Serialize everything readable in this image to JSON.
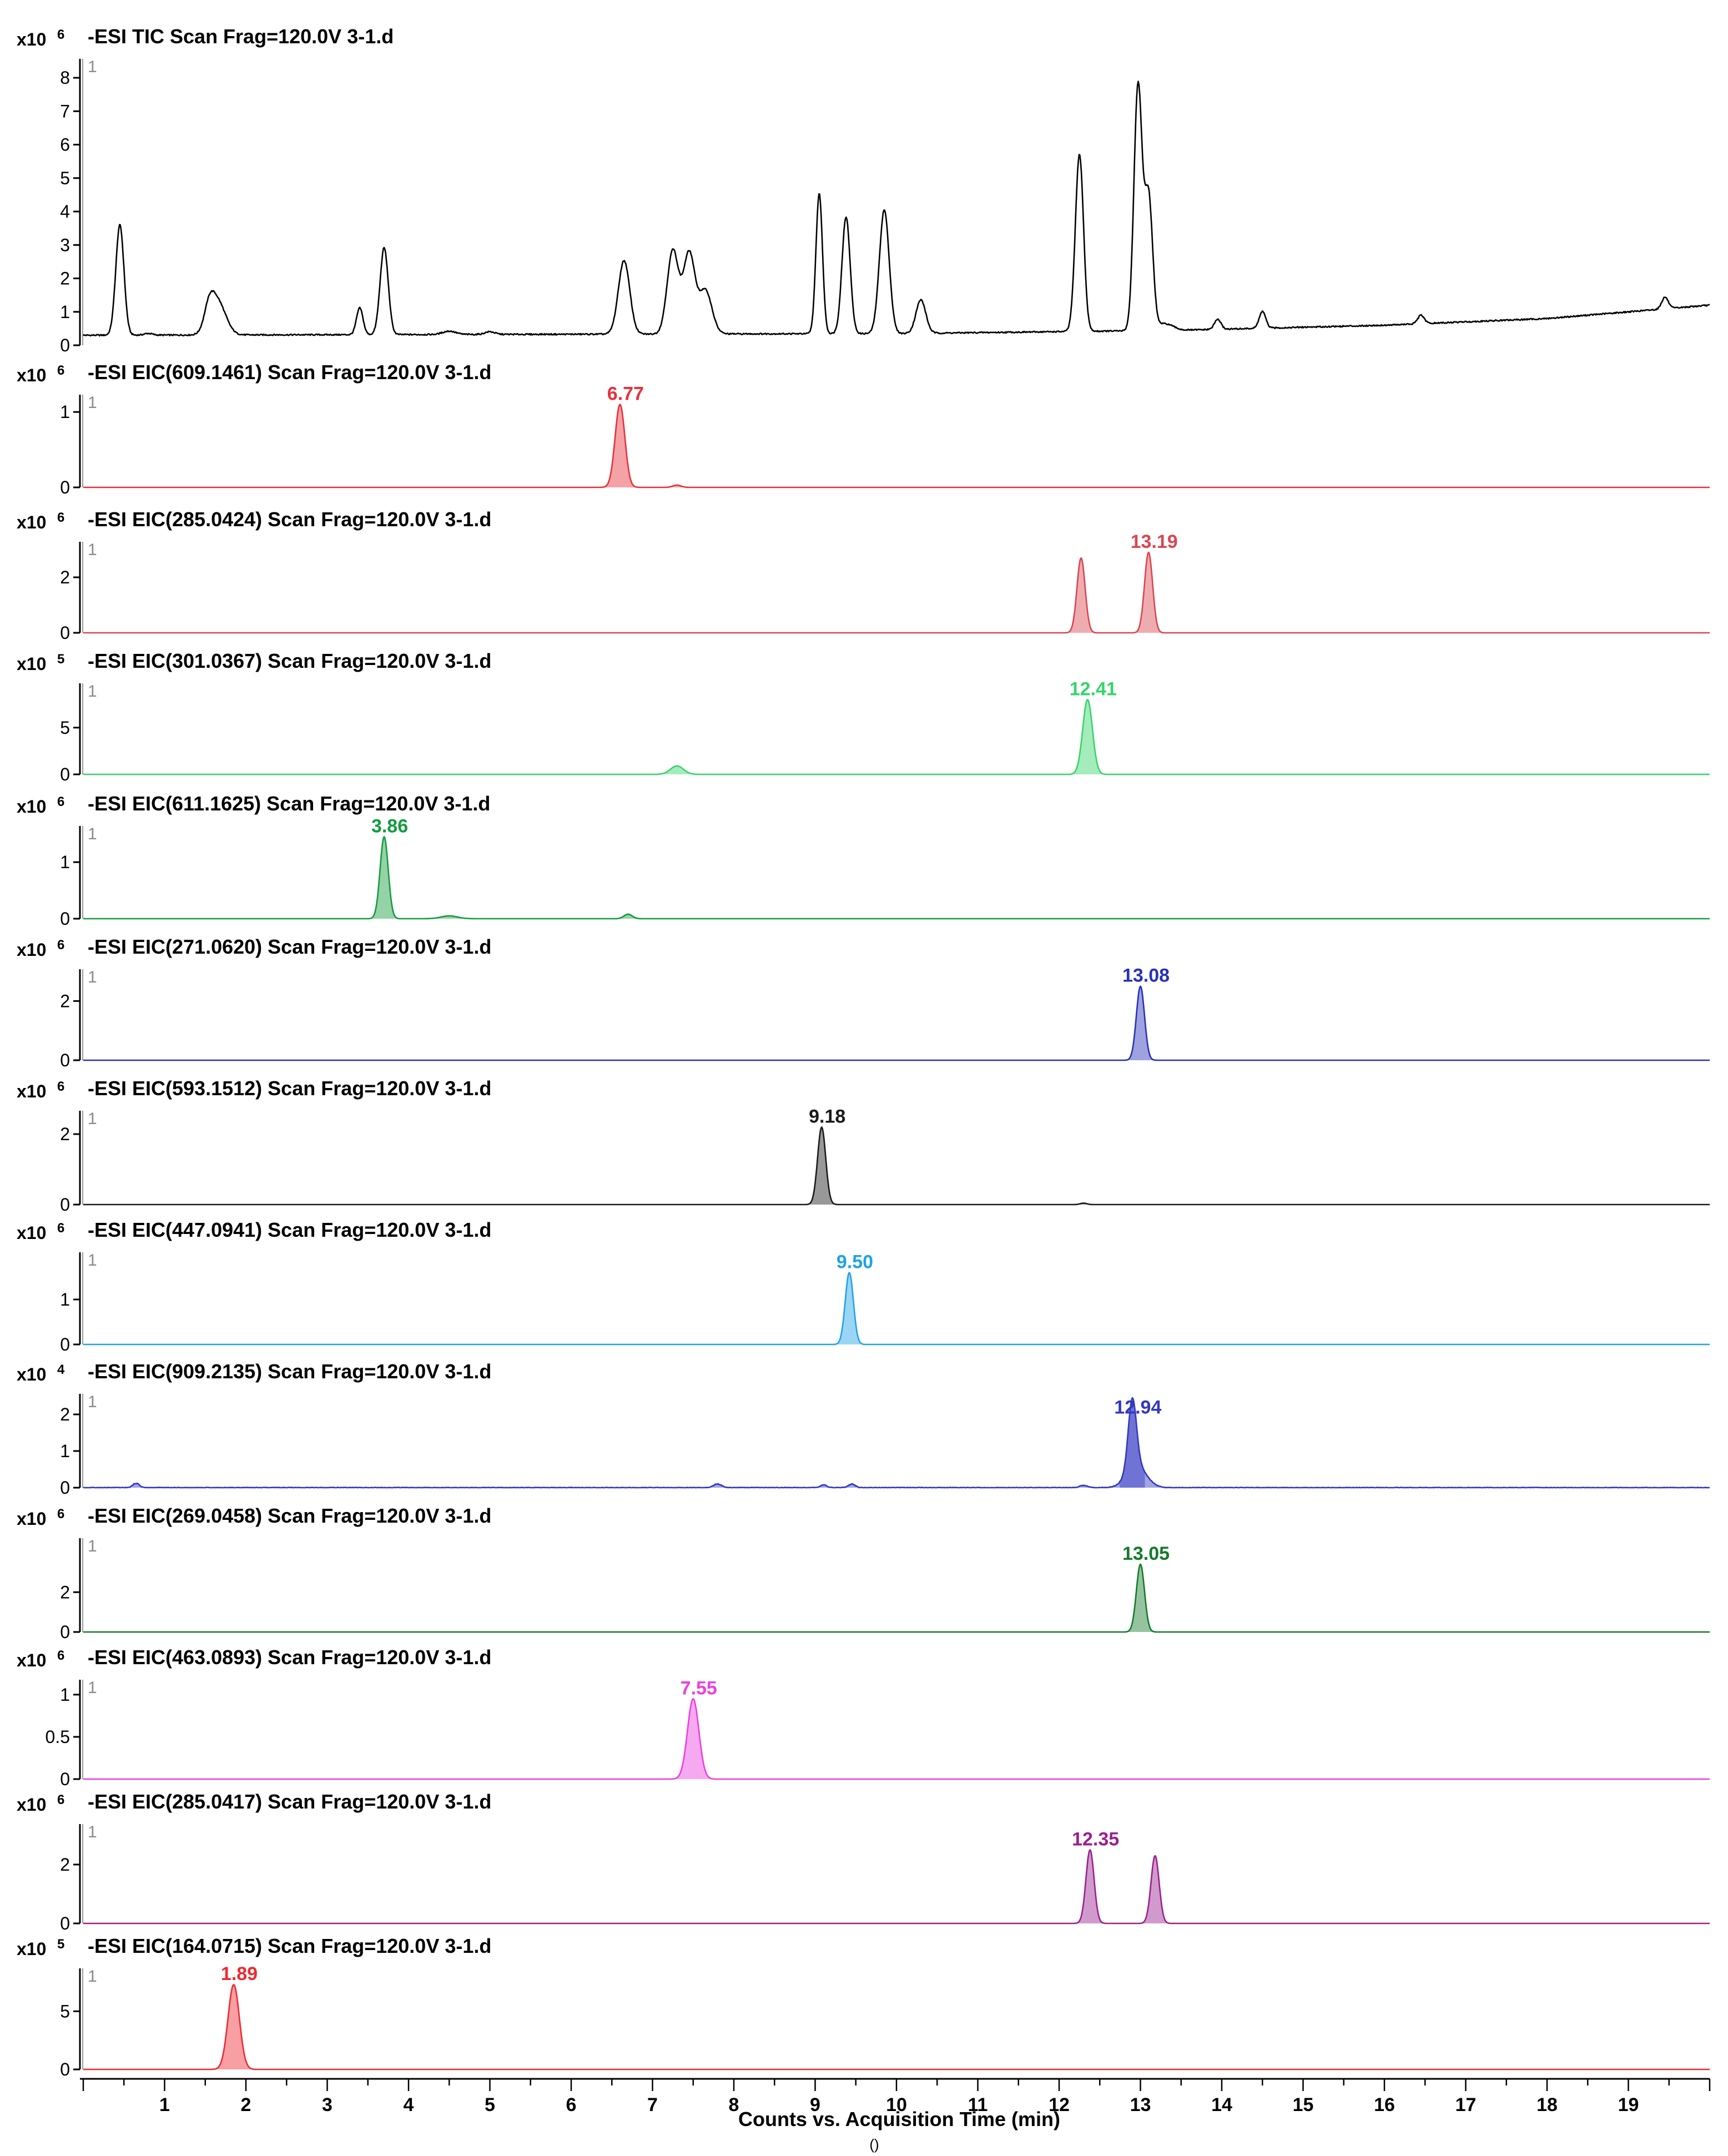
{
  "chart_data": {
    "type": "line",
    "xlabel": "Counts vs. Acquisition Time (min)",
    "xlabel_sub": "()",
    "xlim": [
      0,
      20
    ],
    "xticks": [
      1,
      2,
      3,
      4,
      5,
      6,
      7,
      8,
      9,
      10,
      11,
      12,
      13,
      14,
      15,
      16,
      17,
      18,
      19
    ],
    "panels": [
      {
        "title": "-ESI TIC Scan Frag=120.0V 3-1.d",
        "scale_base": "x10",
        "scale_exp": "6",
        "trace_id": "1",
        "color": "#000000",
        "filled": false,
        "ylim": [
          0,
          8.5
        ],
        "yticks": [
          "0",
          "1",
          "2",
          "3",
          "4",
          "5",
          "6",
          "7",
          "8"
        ],
        "baseline": 0.3,
        "drift": [
          [
            0,
            0.3
          ],
          [
            10,
            0.35
          ],
          [
            13.5,
            0.45
          ],
          [
            16,
            0.6
          ],
          [
            18,
            0.8
          ],
          [
            20,
            1.2
          ]
        ],
        "peaks": [
          [
            0.45,
            3.3,
            0.05
          ],
          [
            0.8,
            0.05,
            0.05
          ],
          [
            1.65,
            1.0,
            0.1
          ],
          [
            1.55,
            0.6,
            0.06
          ],
          [
            3.4,
            0.8,
            0.04
          ],
          [
            3.7,
            2.6,
            0.05
          ],
          [
            4.5,
            0.1,
            0.08
          ],
          [
            5.0,
            0.08,
            0.06
          ],
          [
            6.65,
            2.2,
            0.07
          ],
          [
            7.25,
            2.5,
            0.07
          ],
          [
            7.45,
            2.4,
            0.07
          ],
          [
            7.65,
            1.3,
            0.08
          ],
          [
            9.05,
            4.2,
            0.04
          ],
          [
            9.38,
            3.5,
            0.05
          ],
          [
            9.85,
            3.7,
            0.06
          ],
          [
            10.3,
            1.0,
            0.06
          ],
          [
            12.25,
            5.3,
            0.05
          ],
          [
            12.97,
            7.3,
            0.05
          ],
          [
            13.1,
            4.0,
            0.05
          ],
          [
            13.3,
            0.2,
            0.1
          ],
          [
            13.95,
            0.3,
            0.04
          ],
          [
            14.5,
            0.5,
            0.04
          ],
          [
            16.45,
            0.25,
            0.04
          ],
          [
            19.45,
            0.35,
            0.04
          ]
        ],
        "noise": 0.04,
        "annotations": []
      },
      {
        "title": "-ESI EIC(609.1461) Scan Frag=120.0V 3-1.d",
        "scale_base": "x10",
        "scale_exp": "6",
        "trace_id": "1",
        "color": "#e8303a",
        "filled": true,
        "ylim": [
          0,
          1.2
        ],
        "yticks": [
          "0",
          "1"
        ],
        "baseline": 0,
        "peaks": [
          [
            6.6,
            1.1,
            0.06
          ],
          [
            7.3,
            0.03,
            0.05
          ]
        ],
        "noise": 0.0,
        "annotations": [
          {
            "label": "6.77",
            "x": 6.6,
            "y": 1.1
          }
        ]
      },
      {
        "title": "-ESI EIC(285.0424) Scan Frag=120.0V 3-1.d",
        "scale_base": "x10",
        "scale_exp": "6",
        "trace_id": "1",
        "color": "#d94650",
        "filled": true,
        "ylim": [
          0,
          3.2
        ],
        "yticks": [
          "0",
          "2"
        ],
        "baseline": 0,
        "peaks": [
          [
            12.27,
            2.7,
            0.05
          ],
          [
            13.1,
            2.9,
            0.05
          ]
        ],
        "noise": 0.0,
        "annotations": [
          {
            "label": "13.19",
            "x": 13.1,
            "y": 2.9
          }
        ]
      },
      {
        "title": "-ESI EIC(301.0367) Scan Frag=120.0V 3-1.d",
        "scale_base": "x10",
        "scale_exp": "5",
        "trace_id": "1",
        "color": "#35d46a",
        "filled": true,
        "ylim": [
          0,
          9.5
        ],
        "yticks": [
          "0",
          "5"
        ],
        "baseline": 0,
        "peaks": [
          [
            12.35,
            8.0,
            0.06
          ],
          [
            7.3,
            0.9,
            0.08
          ]
        ],
        "noise": 0.0,
        "annotations": [
          {
            "label": "12.41",
            "x": 12.35,
            "y": 8.0
          }
        ]
      },
      {
        "title": "-ESI EIC(611.1625) Scan Frag=120.0V 3-1.d",
        "scale_base": "x10",
        "scale_exp": "6",
        "trace_id": "1",
        "color": "#139c3f",
        "filled": true,
        "ylim": [
          0,
          1.6
        ],
        "yticks": [
          "0",
          "1"
        ],
        "baseline": 0,
        "peaks": [
          [
            3.7,
            1.45,
            0.05
          ],
          [
            4.5,
            0.05,
            0.1
          ],
          [
            6.7,
            0.08,
            0.05
          ]
        ],
        "noise": 0.0,
        "annotations": [
          {
            "label": "3.86",
            "x": 3.7,
            "y": 1.45
          }
        ]
      },
      {
        "title": "-ESI EIC(271.0620) Scan Frag=120.0V 3-1.d",
        "scale_base": "x10",
        "scale_exp": "6",
        "trace_id": "1",
        "color": "#2831b8",
        "filled": true,
        "ylim": [
          0,
          3.0
        ],
        "yticks": [
          "0",
          "2"
        ],
        "baseline": 0,
        "peaks": [
          [
            13.0,
            2.5,
            0.05
          ]
        ],
        "noise": 0.0,
        "annotations": [
          {
            "label": "13.08",
            "x": 13.0,
            "y": 2.5
          }
        ]
      },
      {
        "title": "-ESI EIC(593.1512) Scan Frag=120.0V 3-1.d",
        "scale_base": "x10",
        "scale_exp": "6",
        "trace_id": "1",
        "color": "#1a1a1a",
        "filled": true,
        "ylim": [
          0,
          2.6
        ],
        "yticks": [
          "0",
          "2"
        ],
        "baseline": 0,
        "peaks": [
          [
            9.08,
            2.2,
            0.05
          ],
          [
            12.3,
            0.04,
            0.04
          ]
        ],
        "noise": 0.0,
        "annotations": [
          {
            "label": "9.18",
            "x": 9.08,
            "y": 2.2
          }
        ]
      },
      {
        "title": "-ESI EIC(447.0941) Scan Frag=120.0V 3-1.d",
        "scale_base": "x10",
        "scale_exp": "6",
        "trace_id": "1",
        "color": "#1ea3e6",
        "filled": true,
        "ylim": [
          0,
          2.0
        ],
        "yticks": [
          "0",
          "1"
        ],
        "baseline": 0,
        "peaks": [
          [
            9.42,
            1.6,
            0.05
          ]
        ],
        "noise": 0.0,
        "annotations": [
          {
            "label": "9.50",
            "x": 9.42,
            "y": 1.6
          }
        ]
      },
      {
        "title": "-ESI EIC(909.2135) Scan Frag=120.0V 3-1.d",
        "scale_base": "x10",
        "scale_exp": "4",
        "trace_id": "1",
        "color": "#3338c0",
        "filled": true,
        "ylim": [
          0,
          2.5
        ],
        "yticks": [
          "0",
          "1",
          "2"
        ],
        "baseline": 0,
        "peaks": [
          [
            12.9,
            1.9,
            0.05
          ],
          [
            12.95,
            0.6,
            0.12
          ],
          [
            0.65,
            0.12,
            0.04
          ],
          [
            7.8,
            0.1,
            0.05
          ],
          [
            9.1,
            0.08,
            0.04
          ],
          [
            9.45,
            0.1,
            0.04
          ],
          [
            12.3,
            0.06,
            0.05
          ]
        ],
        "noise": 0.02,
        "annotations": [
          {
            "label": "12.94",
            "x": 12.9,
            "y": 1.9
          }
        ]
      },
      {
        "title": "-ESI EIC(269.0458) Scan Frag=120.0V 3-1.d",
        "scale_base": "x10",
        "scale_exp": "6",
        "trace_id": "1",
        "color": "#147a2a",
        "filled": true,
        "ylim": [
          0,
          4.6
        ],
        "yticks": [
          "0",
          "2"
        ],
        "baseline": 0,
        "peaks": [
          [
            13.0,
            3.4,
            0.05
          ]
        ],
        "noise": 0.0,
        "annotations": [
          {
            "label": "13.05",
            "x": 13.0,
            "y": 3.4
          }
        ]
      },
      {
        "title": "-ESI EIC(463.0893) Scan Frag=120.0V 3-1.d",
        "scale_base": "x10",
        "scale_exp": "6",
        "trace_id": "1",
        "color": "#ec3fe0",
        "filled": true,
        "ylim": [
          0,
          1.15
        ],
        "yticks": [
          "0",
          "0.5",
          "1"
        ],
        "baseline": 0,
        "peaks": [
          [
            7.5,
            0.95,
            0.07
          ]
        ],
        "noise": 0.0,
        "annotations": [
          {
            "label": "7.55",
            "x": 7.5,
            "y": 0.95
          }
        ]
      },
      {
        "title": "-ESI EIC(285.0417) Scan Frag=120.0V 3-1.d",
        "scale_base": "x10",
        "scale_exp": "6",
        "trace_id": "1",
        "color": "#9a1f8e",
        "filled": true,
        "ylim": [
          0,
          3.3
        ],
        "yticks": [
          "0",
          "2"
        ],
        "baseline": 0,
        "peaks": [
          [
            12.38,
            2.5,
            0.05
          ],
          [
            13.18,
            2.3,
            0.05
          ]
        ],
        "noise": 0.0,
        "annotations": [
          {
            "label": "12.35",
            "x": 12.38,
            "y": 2.5
          }
        ]
      },
      {
        "title": "-ESI EIC(164.0715) Scan Frag=120.0V 3-1.d",
        "scale_base": "x10",
        "scale_exp": "5",
        "trace_id": "1",
        "color": "#ee2a30",
        "filled": true,
        "ylim": [
          0,
          8.5
        ],
        "yticks": [
          "0",
          "5"
        ],
        "baseline": 0,
        "peaks": [
          [
            1.85,
            7.3,
            0.07
          ]
        ],
        "noise": 0.0,
        "annotations": [
          {
            "label": "1.89",
            "x": 1.85,
            "y": 7.3
          }
        ]
      }
    ]
  }
}
